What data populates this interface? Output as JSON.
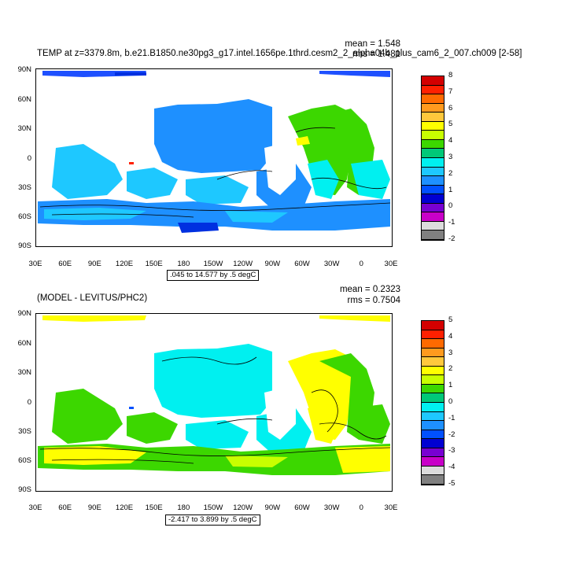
{
  "panel1": {
    "title": "TEMP at z=3379.8m, b.e21.B1850.ne30pg3_g17.intel.1656pe.1thrd.cesm2_2_alpha04b_plus_cam6_2_007.ch009 [2-58]",
    "mean_label": "mean = 1.548",
    "rms_label": "rms = 1.481",
    "range_label": ".045 to 14.577 by .5 degC",
    "colorbar": {
      "labels": [
        "8",
        "7",
        "6",
        "5",
        "4",
        "3",
        "2",
        "1",
        "0",
        "-1",
        "-2"
      ],
      "colors": [
        "#d40000",
        "#ff2000",
        "#ff6a00",
        "#ff9a1e",
        "#ffc83c",
        "#ffff00",
        "#c8ff00",
        "#3cd700",
        "#00c878",
        "#00f0f0",
        "#1ec8ff",
        "#1e90ff",
        "#0050ff",
        "#0000d2",
        "#7800d2",
        "#c800c8",
        "#dcdcdc",
        "#808080"
      ]
    }
  },
  "panel2": {
    "title": "(MODEL - LEVITUS/PHC2)",
    "mean_label": "mean = 0.2323",
    "rms_label": "rms = 0.7504",
    "range_label": "-2.417 to 3.899 by .5 degC",
    "colorbar": {
      "labels": [
        "5",
        "4",
        "3",
        "2",
        "1",
        "0",
        "-1",
        "-2",
        "-3",
        "-4",
        "-5"
      ],
      "colors": [
        "#d40000",
        "#ff2000",
        "#ff6a00",
        "#ff9a1e",
        "#ffc83c",
        "#ffff00",
        "#c8ff00",
        "#3cd700",
        "#00c878",
        "#00f0f0",
        "#1ec8ff",
        "#1e90ff",
        "#0050ff",
        "#0000d2",
        "#7800d2",
        "#c800c8",
        "#dcdcdc",
        "#808080"
      ]
    }
  },
  "axes": {
    "lat_labels": [
      "90N",
      "60N",
      "30N",
      "0",
      "30S",
      "60S",
      "90S"
    ],
    "lon_labels": [
      "30E",
      "60E",
      "90E",
      "120E",
      "150E",
      "180",
      "150W",
      "120W",
      "90W",
      "60W",
      "30W",
      "0",
      "30E"
    ]
  }
}
